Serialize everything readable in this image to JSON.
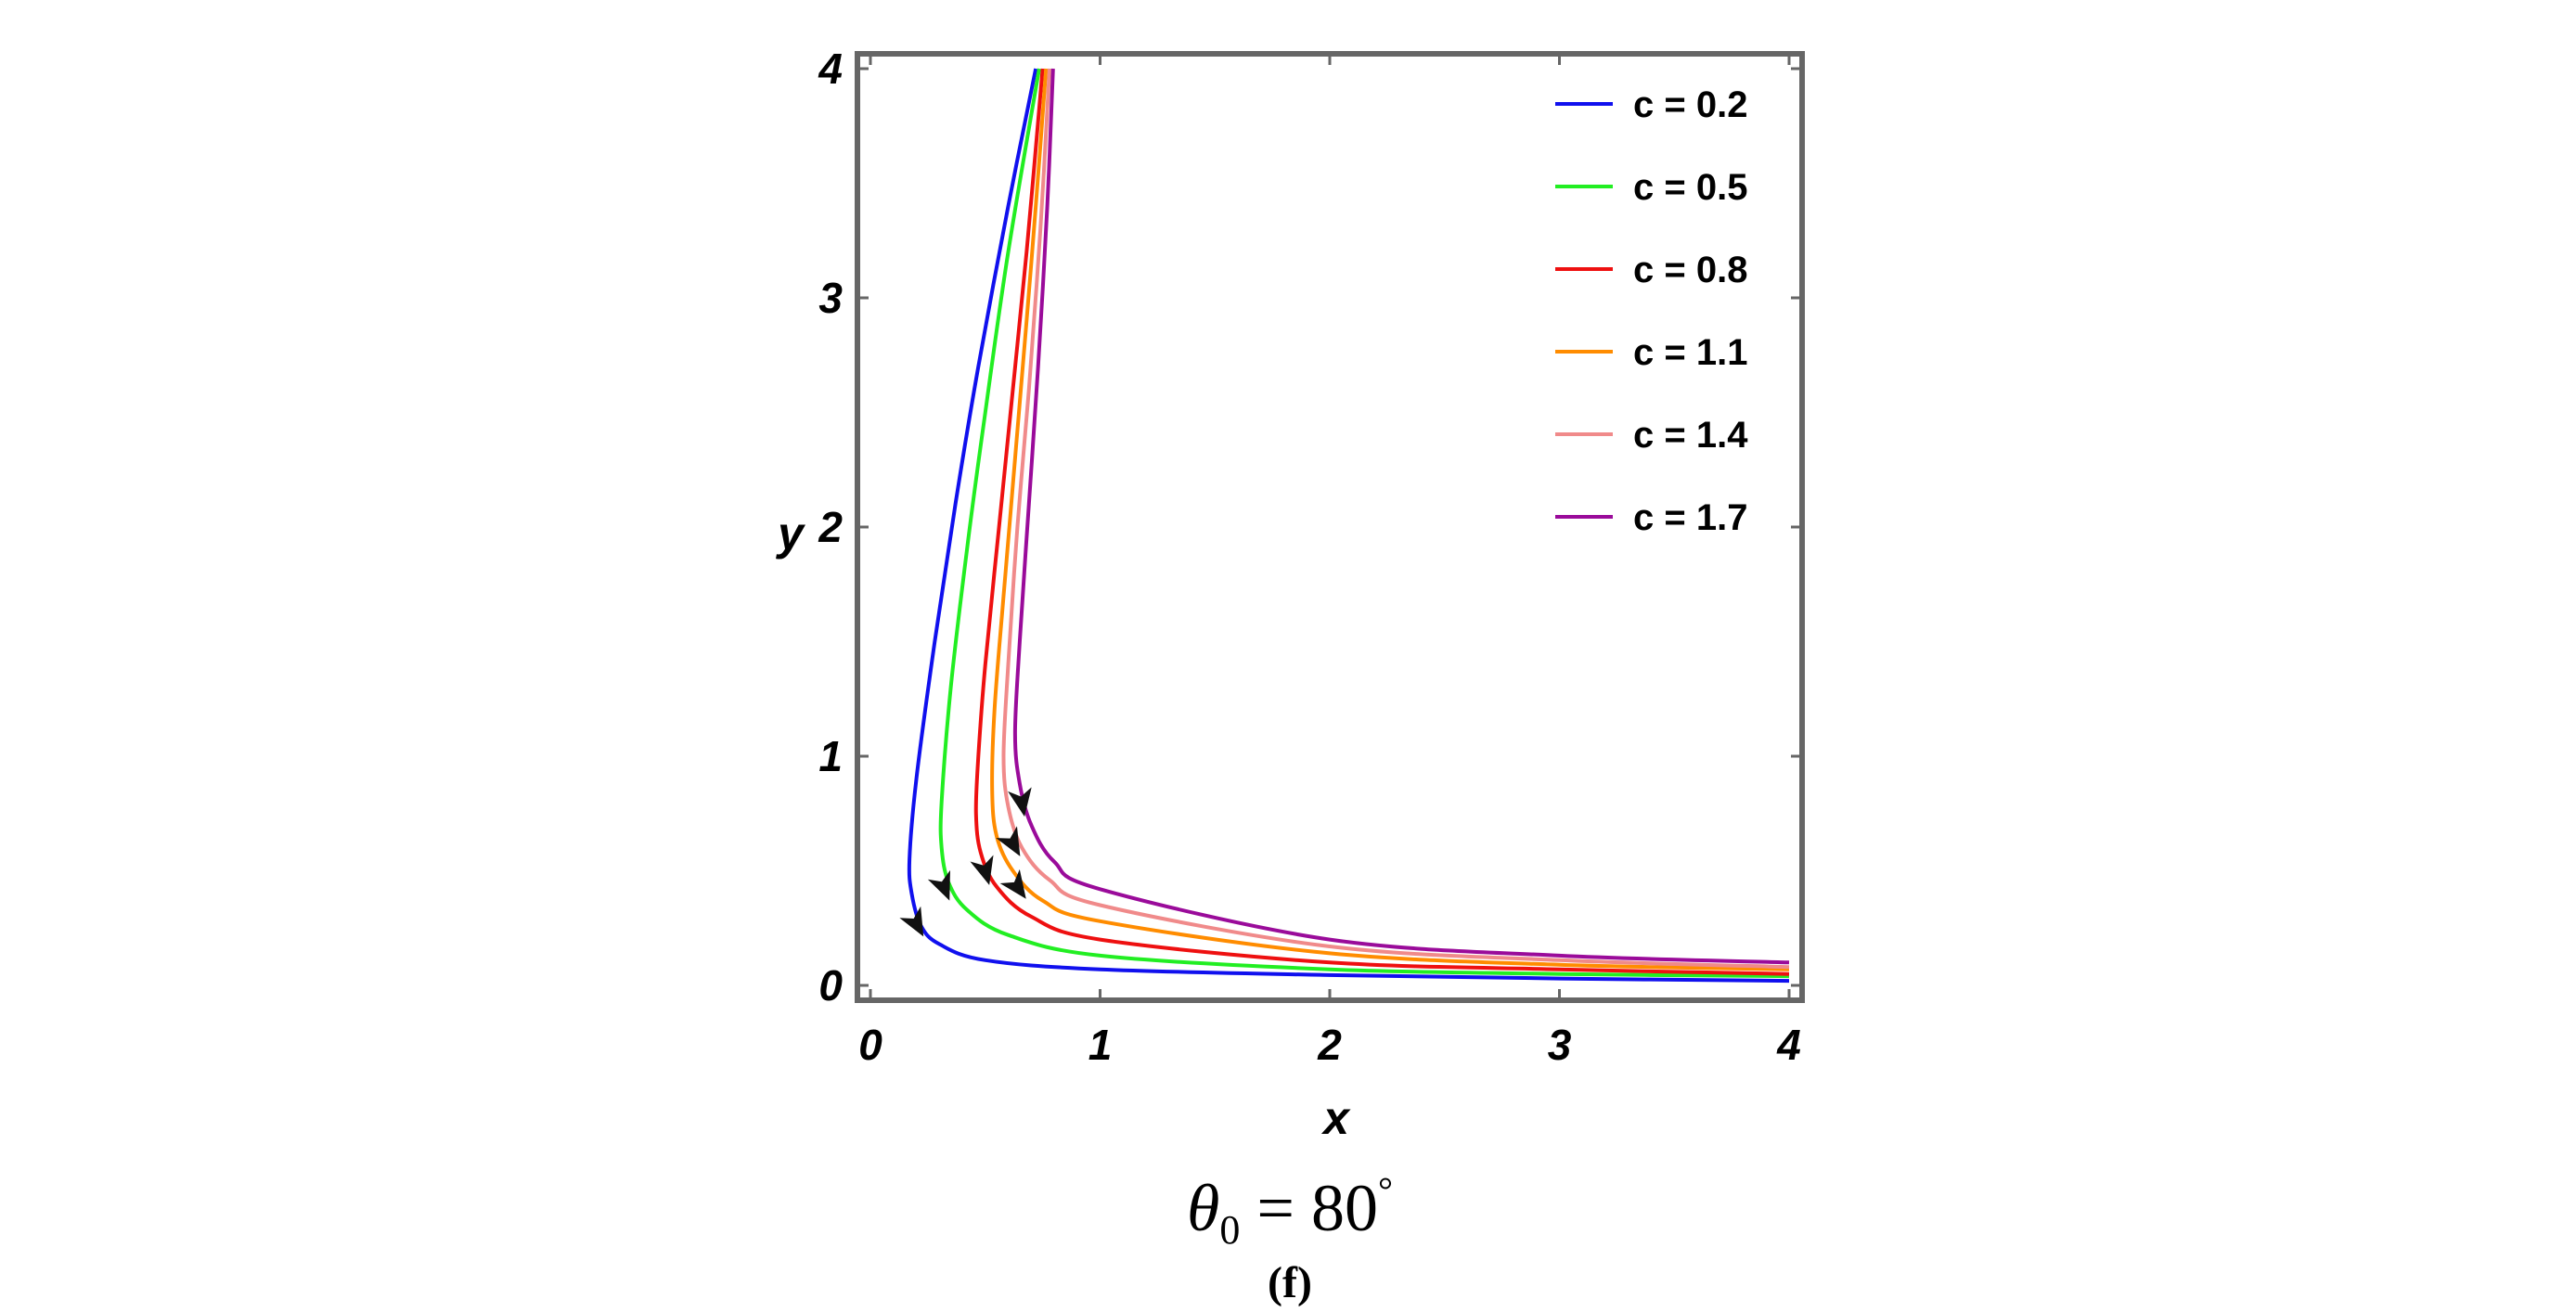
{
  "chart_data": {
    "type": "line",
    "xlabel": "x",
    "ylabel": "y",
    "xlim": [
      0,
      4
    ],
    "ylim": [
      0,
      4
    ],
    "xticks": [
      0,
      1,
      2,
      3,
      4
    ],
    "yticks": [
      0,
      1,
      2,
      3,
      4
    ],
    "grid": false,
    "legend_position": "top-right",
    "caption": {
      "theta_symbol": "θ",
      "theta_subscript": "0",
      "equation_rest": " = 80",
      "degree_mark": "°",
      "panel_label": "(f)"
    },
    "series": [
      {
        "name": "c = 0.2",
        "color": "#1010ee",
        "c": 0.2,
        "x_at_top": 0.72,
        "arrow_at": [
          0.2,
          0.27
        ],
        "points": [
          [
            4.0,
            0.02
          ],
          [
            3.0,
            0.03
          ],
          [
            2.0,
            0.045
          ],
          [
            1.0,
            0.07
          ],
          [
            0.5,
            0.11
          ],
          [
            0.3,
            0.18
          ],
          [
            0.22,
            0.26
          ],
          [
            0.18,
            0.4
          ],
          [
            0.17,
            0.55
          ],
          [
            0.2,
            0.9
          ],
          [
            0.28,
            1.5
          ],
          [
            0.37,
            2.1
          ],
          [
            0.47,
            2.7
          ],
          [
            0.6,
            3.4
          ],
          [
            0.72,
            4.0
          ]
        ]
      },
      {
        "name": "c = 0.5",
        "color": "#22ee22",
        "c": 0.5,
        "x_at_top": 0.735,
        "arrow_at": [
          0.32,
          0.43
        ],
        "points": [
          [
            4.0,
            0.04
          ],
          [
            3.0,
            0.05
          ],
          [
            2.0,
            0.07
          ],
          [
            1.0,
            0.13
          ],
          [
            0.6,
            0.22
          ],
          [
            0.42,
            0.33
          ],
          [
            0.34,
            0.45
          ],
          [
            0.31,
            0.6
          ],
          [
            0.31,
            0.8
          ],
          [
            0.35,
            1.3
          ],
          [
            0.42,
            1.9
          ],
          [
            0.5,
            2.5
          ],
          [
            0.6,
            3.2
          ],
          [
            0.735,
            4.0
          ]
        ]
      },
      {
        "name": "c = 0.8",
        "color": "#ee1010",
        "c": 0.8,
        "x_at_top": 0.75,
        "arrow_at": [
          0.5,
          0.5
        ],
        "points": [
          [
            4.0,
            0.05
          ],
          [
            3.0,
            0.07
          ],
          [
            2.0,
            0.1
          ],
          [
            1.0,
            0.2
          ],
          [
            0.7,
            0.3
          ],
          [
            0.55,
            0.43
          ],
          [
            0.48,
            0.58
          ],
          [
            0.46,
            0.75
          ],
          [
            0.47,
            1.0
          ],
          [
            0.5,
            1.4
          ],
          [
            0.56,
            2.0
          ],
          [
            0.62,
            2.6
          ],
          [
            0.68,
            3.2
          ],
          [
            0.75,
            4.0
          ]
        ]
      },
      {
        "name": "c = 1.1",
        "color": "#ff8c00",
        "c": 1.1,
        "x_at_top": 0.765,
        "arrow_at": [
          0.64,
          0.43
        ],
        "points": [
          [
            4.0,
            0.07
          ],
          [
            3.0,
            0.09
          ],
          [
            2.0,
            0.14
          ],
          [
            1.0,
            0.28
          ],
          [
            0.75,
            0.37
          ],
          [
            0.62,
            0.5
          ],
          [
            0.55,
            0.65
          ],
          [
            0.53,
            0.85
          ],
          [
            0.54,
            1.2
          ],
          [
            0.58,
            1.7
          ],
          [
            0.63,
            2.3
          ],
          [
            0.68,
            2.9
          ],
          [
            0.72,
            3.4
          ],
          [
            0.765,
            4.0
          ]
        ]
      },
      {
        "name": "c = 1.4",
        "color": "#f08a8a",
        "c": 1.4,
        "x_at_top": 0.78,
        "arrow_at": [
          0.62,
          0.62
        ],
        "points": [
          [
            4.0,
            0.08
          ],
          [
            3.0,
            0.11
          ],
          [
            2.0,
            0.17
          ],
          [
            1.0,
            0.35
          ],
          [
            0.78,
            0.46
          ],
          [
            0.66,
            0.6
          ],
          [
            0.6,
            0.78
          ],
          [
            0.58,
            1.0
          ],
          [
            0.6,
            1.4
          ],
          [
            0.64,
            2.0
          ],
          [
            0.69,
            2.6
          ],
          [
            0.74,
            3.3
          ],
          [
            0.78,
            4.0
          ]
        ]
      },
      {
        "name": "c = 1.7",
        "color": "#9a0b9a",
        "c": 1.7,
        "x_at_top": 0.795,
        "arrow_at": [
          0.66,
          0.8
        ],
        "points": [
          [
            4.0,
            0.1
          ],
          [
            3.0,
            0.13
          ],
          [
            2.0,
            0.2
          ],
          [
            1.0,
            0.42
          ],
          [
            0.8,
            0.54
          ],
          [
            0.7,
            0.7
          ],
          [
            0.65,
            0.88
          ],
          [
            0.63,
            1.1
          ],
          [
            0.65,
            1.5
          ],
          [
            0.69,
            2.1
          ],
          [
            0.73,
            2.7
          ],
          [
            0.77,
            3.4
          ],
          [
            0.795,
            4.0
          ]
        ]
      }
    ]
  }
}
